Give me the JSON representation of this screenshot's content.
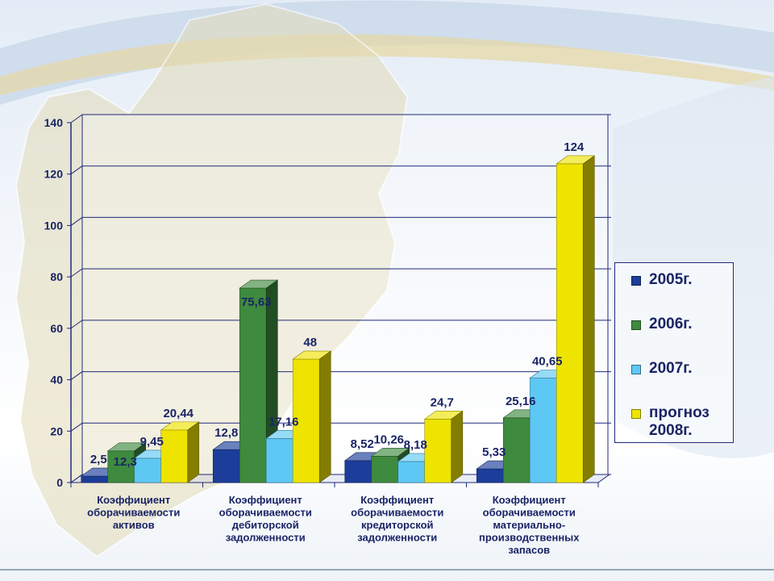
{
  "colors": {
    "series": [
      "#1c3d99",
      "#3e8a3e",
      "#5ec8f4",
      "#eee400"
    ],
    "axis_text": "#1a2466",
    "grid": "#1f2a7a"
  },
  "chart_data": {
    "type": "bar",
    "title": "",
    "xlabel": "",
    "ylabel": "",
    "ylim": [
      0,
      140
    ],
    "yticks": [
      "0",
      "20",
      "40",
      "60",
      "80",
      "100",
      "120",
      "140"
    ],
    "grid": true,
    "legend_position": "right",
    "categories": [
      "Коэффициент оборачиваемости активов",
      "Коэффициент оборачиваемости дебиторской задолженности",
      "Коэффициент оборачиваемости кредиторской задолженности",
      "Коэффициент оборачиваемости материально-производственных запасов"
    ],
    "category_lines": [
      [
        "Коэффициент",
        "оборачиваемости",
        "активов"
      ],
      [
        "Коэффициент",
        "оборачиваемости",
        "дебиторской",
        "задолженности"
      ],
      [
        "Коэффициент",
        "оборачиваемости",
        "кредиторской",
        "задолженности"
      ],
      [
        "Коэффициент",
        "оборачиваемости",
        "материально-",
        "производственных",
        "запасов"
      ]
    ],
    "series": [
      {
        "name": "2005г.",
        "values": [
          2.5,
          12.8,
          8.52,
          5.33
        ],
        "labels": [
          "2,5",
          "12,8",
          "8,52",
          "5,33"
        ]
      },
      {
        "name": "2006г.",
        "values": [
          12.3,
          75.63,
          10.26,
          25.16
        ],
        "labels": [
          "12,3",
          "75,63",
          "10,26",
          "25,16"
        ]
      },
      {
        "name": "2007г.",
        "values": [
          9.45,
          17.16,
          8.18,
          40.65
        ],
        "labels": [
          "9,45",
          "17,16",
          "8,18",
          "40,65"
        ]
      },
      {
        "name": "прогноз 2008г.",
        "values": [
          20.44,
          48,
          24.7,
          124
        ],
        "labels": [
          "20,44",
          "48",
          "24,7",
          "124"
        ]
      }
    ]
  }
}
